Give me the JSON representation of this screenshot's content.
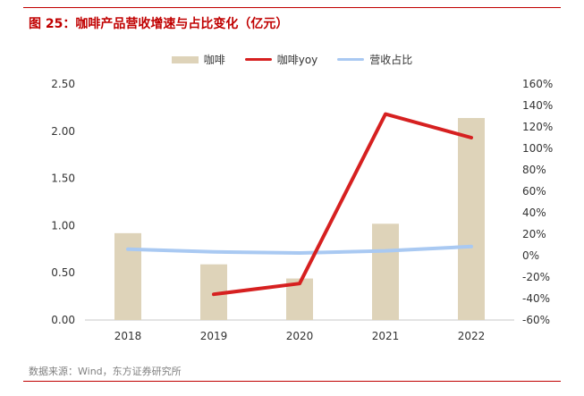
{
  "figure": {
    "title": "图 25：咖啡产品营收增速与占比变化（亿元）",
    "source": "数据来源：Wind，东方证券研究所"
  },
  "colors": {
    "accent": "#c00000",
    "bar": "#ded3b9",
    "yoy_line": "#d62020",
    "share_line": "#a9c9f2",
    "axis": "#c8c8c8",
    "text": "#333333"
  },
  "chart_data": {
    "type": "bar",
    "categories": [
      "2018",
      "2019",
      "2020",
      "2021",
      "2022"
    ],
    "series": [
      {
        "name": "咖啡",
        "type": "bar",
        "axis": "left",
        "values": [
          0.92,
          0.59,
          0.44,
          1.02,
          2.14
        ]
      },
      {
        "name": "咖啡yoy",
        "type": "line",
        "axis": "right",
        "values": [
          null,
          -36,
          -26,
          132,
          110
        ]
      },
      {
        "name": "营收占比",
        "type": "line",
        "axis": "right",
        "values": [
          6,
          3.5,
          2.5,
          4.5,
          8.5
        ]
      }
    ],
    "y_left": {
      "min": 0,
      "max": 2.5,
      "ticks": [
        "0.00",
        "0.50",
        "1.00",
        "1.50",
        "2.00",
        "2.50"
      ]
    },
    "y_right": {
      "min": -60,
      "max": 160,
      "ticks": [
        "-60%",
        "-40%",
        "-20%",
        "0%",
        "20%",
        "40%",
        "60%",
        "80%",
        "100%",
        "120%",
        "140%",
        "160%"
      ]
    },
    "legend_position": "top-center",
    "grid": false
  }
}
